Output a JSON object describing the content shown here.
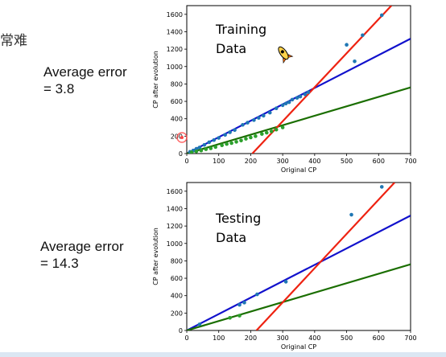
{
  "side_text": {
    "cjk_fragment": "常难",
    "training_error_line1": "Average error",
    "training_error_line2": "= 3.8",
    "testing_error_line1": "Average error",
    "testing_error_line2": "= 14.3"
  },
  "colors": {
    "blue_line": "#1111cc",
    "green_line": "#1a6e00",
    "red_line": "#ee2211",
    "blue_points": "#1f77b4",
    "green_points": "#2ca02c",
    "cursor_marker": "#ff4444"
  },
  "chart_data": [
    {
      "type": "scatter",
      "annotation": [
        "Training",
        "Data"
      ],
      "xlabel": "Original CP",
      "ylabel": "CP after evolution",
      "xlim": [
        0,
        700
      ],
      "ylim": [
        0,
        1700
      ],
      "xticks": [
        0,
        100,
        200,
        300,
        400,
        500,
        600,
        700
      ],
      "yticks": [
        0,
        200,
        400,
        600,
        800,
        1000,
        1200,
        1400,
        1600
      ],
      "grid": false,
      "series": [
        {
          "color": "#1f77b4",
          "points": [
            [
              10,
              20
            ],
            [
              20,
              35
            ],
            [
              30,
              55
            ],
            [
              40,
              70
            ],
            [
              55,
              100
            ],
            [
              70,
              130
            ],
            [
              85,
              155
            ],
            [
              100,
              180
            ],
            [
              120,
              215
            ],
            [
              135,
              245
            ],
            [
              150,
              270
            ],
            [
              175,
              330
            ],
            [
              190,
              355
            ],
            [
              210,
              385
            ],
            [
              225,
              410
            ],
            [
              240,
              435
            ],
            [
              260,
              470
            ],
            [
              280,
              520
            ],
            [
              300,
              555
            ],
            [
              310,
              575
            ],
            [
              320,
              590
            ],
            [
              330,
              620
            ],
            [
              345,
              640
            ],
            [
              355,
              655
            ],
            [
              370,
              680
            ],
            [
              380,
              705
            ],
            [
              500,
              1250
            ],
            [
              525,
              1060
            ],
            [
              550,
              1360
            ],
            [
              610,
              1590
            ]
          ]
        },
        {
          "color": "#2ca02c",
          "points": [
            [
              15,
              15
            ],
            [
              30,
              25
            ],
            [
              45,
              35
            ],
            [
              60,
              50
            ],
            [
              75,
              60
            ],
            [
              90,
              75
            ],
            [
              110,
              95
            ],
            [
              125,
              110
            ],
            [
              140,
              120
            ],
            [
              155,
              135
            ],
            [
              170,
              150
            ],
            [
              185,
              170
            ],
            [
              200,
              185
            ],
            [
              215,
              200
            ],
            [
              235,
              225
            ],
            [
              250,
              240
            ],
            [
              265,
              255
            ],
            [
              280,
              275
            ],
            [
              300,
              300
            ]
          ]
        }
      ],
      "fit_lines": [
        {
          "color": "#1111cc",
          "from": [
            0,
            0
          ],
          "to": [
            700,
            1320
          ]
        },
        {
          "color": "#1a6e00",
          "from": [
            0,
            0
          ],
          "to": [
            700,
            760
          ]
        },
        {
          "color": "#ee2211",
          "from": [
            205,
            0
          ],
          "to": [
            640,
            1700
          ]
        }
      ]
    },
    {
      "type": "scatter",
      "annotation": [
        "Testing",
        "Data"
      ],
      "xlabel": "Original CP",
      "ylabel": "CP after evolution",
      "xlim": [
        0,
        700
      ],
      "ylim": [
        0,
        1700
      ],
      "xticks": [
        0,
        100,
        200,
        300,
        400,
        500,
        600,
        700
      ],
      "yticks": [
        0,
        200,
        400,
        600,
        800,
        1000,
        1200,
        1400,
        1600
      ],
      "grid": false,
      "series": [
        {
          "color": "#1f77b4",
          "points": [
            [
              40,
              70
            ],
            [
              165,
              295
            ],
            [
              180,
              320
            ],
            [
              220,
              415
            ],
            [
              310,
              560
            ],
            [
              515,
              1330
            ],
            [
              610,
              1650
            ]
          ]
        },
        {
          "color": "#2ca02c",
          "points": [
            [
              135,
              145
            ],
            [
              165,
              170
            ]
          ]
        }
      ],
      "fit_lines": [
        {
          "color": "#1111cc",
          "from": [
            0,
            0
          ],
          "to": [
            700,
            1320
          ]
        },
        {
          "color": "#1a6e00",
          "from": [
            0,
            0
          ],
          "to": [
            700,
            760
          ]
        },
        {
          "color": "#ee2211",
          "from": [
            218,
            0
          ],
          "to": [
            650,
            1700
          ]
        }
      ]
    }
  ]
}
